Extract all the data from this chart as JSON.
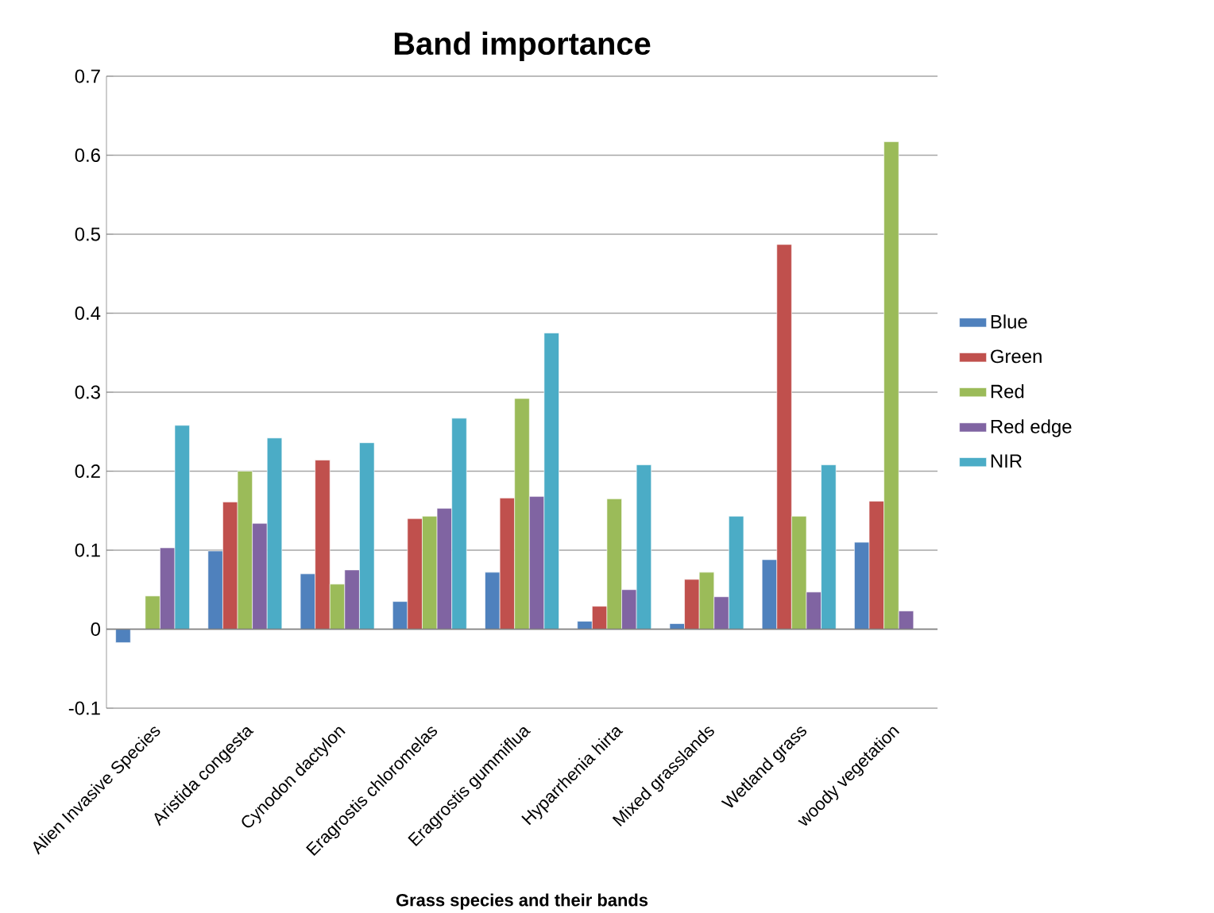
{
  "chart_data": {
    "type": "bar",
    "title": "Band importance",
    "xlabel": "Grass species  and their bands",
    "categories": [
      "Alien Invasive Species",
      "Aristida congesta",
      "Cynodon dactylon",
      "Eragrostis chloromelas",
      "Eragrostis gummiflua",
      "Hyparrhenia hirta",
      "Mixed grasslands",
      "Wetland grass",
      "woody vegetation"
    ],
    "series": [
      {
        "name": "Blue",
        "color": "#4f81bd",
        "values": [
          -0.017,
          0.099,
          0.07,
          0.035,
          0.072,
          0.01,
          0.007,
          0.088,
          0.11
        ]
      },
      {
        "name": "Green",
        "color": "#c0504d",
        "values": [
          null,
          0.161,
          0.214,
          0.14,
          0.166,
          0.029,
          0.063,
          0.487,
          0.162
        ]
      },
      {
        "name": "Red",
        "color": "#9bbb59",
        "values": [
          0.042,
          0.2,
          0.057,
          0.143,
          0.292,
          0.165,
          0.072,
          0.143,
          0.617
        ]
      },
      {
        "name": "Red edge",
        "color": "#8064a2",
        "values": [
          0.103,
          0.134,
          0.075,
          0.153,
          0.168,
          0.05,
          0.041,
          0.047,
          0.023
        ]
      },
      {
        "name": "NIR",
        "color": "#4bacc6",
        "values": [
          0.258,
          0.242,
          0.236,
          0.267,
          0.375,
          0.208,
          0.143,
          0.208,
          null
        ]
      }
    ],
    "ylim": [
      -0.1,
      0.7
    ],
    "yticks": [
      -0.1,
      0,
      0.1,
      0.2,
      0.3,
      0.4,
      0.5,
      0.6,
      0.7
    ],
    "grid": "y",
    "legend": "right"
  }
}
